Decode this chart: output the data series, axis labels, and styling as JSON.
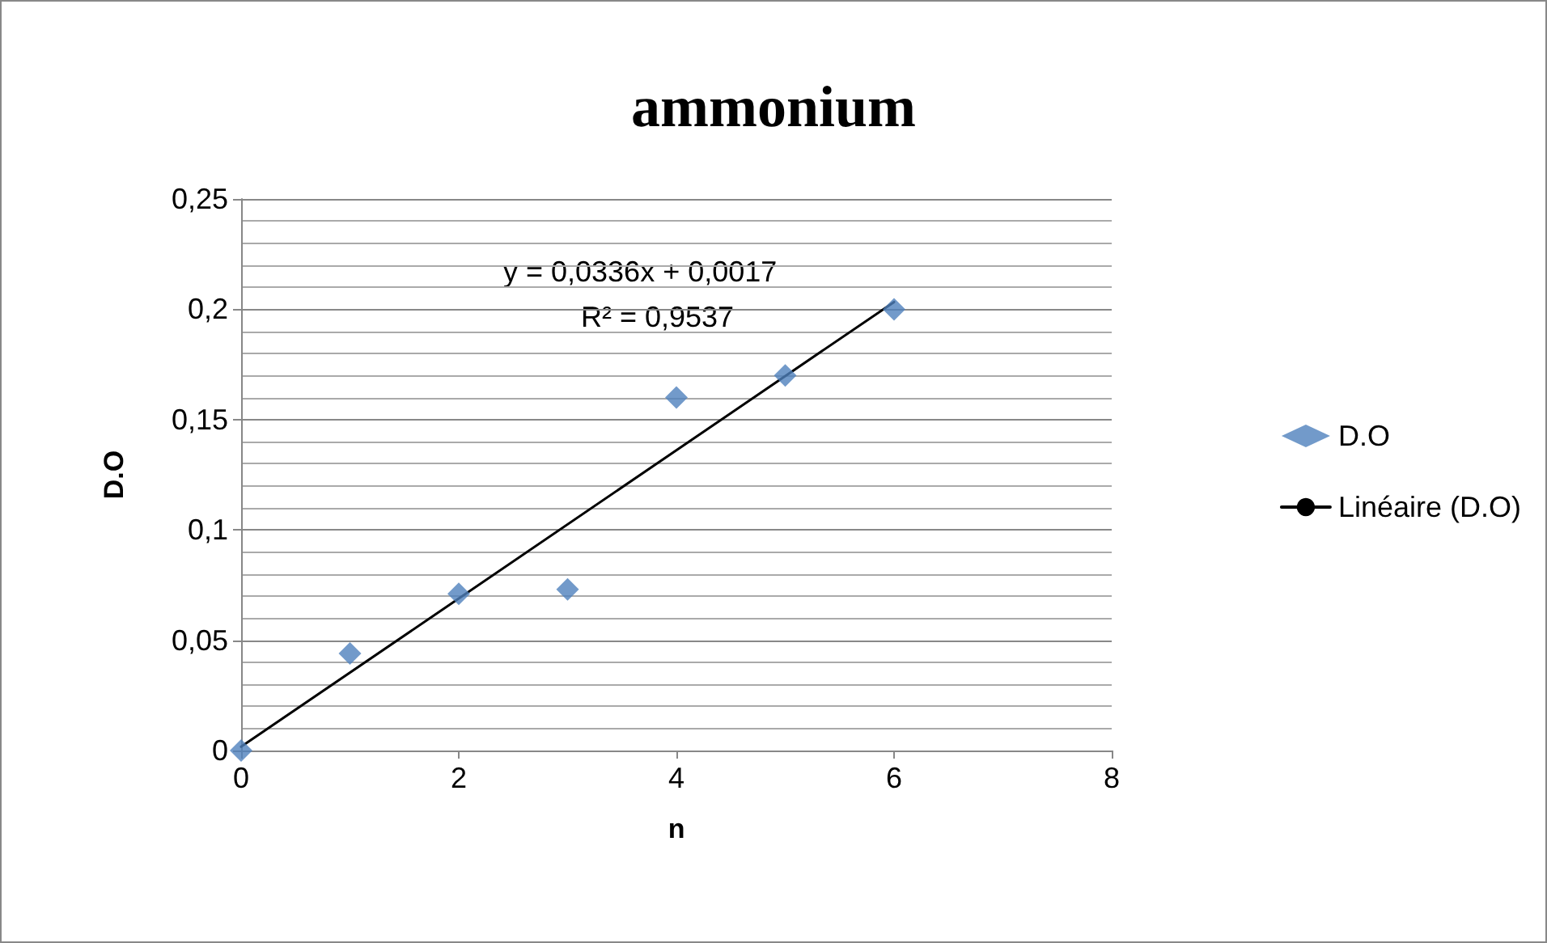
{
  "chart_data": {
    "type": "scatter",
    "title": "ammonium",
    "xlabel": "n",
    "ylabel": "D.O",
    "x": [
      0,
      1,
      2,
      3,
      4,
      5,
      6
    ],
    "series": [
      {
        "name": "D.O",
        "color": "#4f81bd",
        "marker": "diamond",
        "values": [
          0,
          0.044,
          0.071,
          0.073,
          0.16,
          0.17,
          0.2
        ]
      },
      {
        "name": "Linéaire (D.O)",
        "type": "line",
        "color": "#000000",
        "marker": "none",
        "line_style": "solid",
        "x": [
          0,
          6
        ],
        "values": [
          0.0017,
          0.2033
        ]
      }
    ],
    "xlim": [
      0,
      8
    ],
    "xticks": [
      0,
      2,
      4,
      6,
      8
    ],
    "ylim": [
      0,
      0.25
    ],
    "yticks": [
      0,
      {
        "value": 0.05,
        "label": "0,05"
      },
      {
        "value": 0.1,
        "label": "0,1"
      },
      {
        "value": 0.15,
        "label": "0,15"
      },
      {
        "value": 0.2,
        "label": "0,2"
      },
      {
        "value": 0.25,
        "label": "0,25"
      }
    ],
    "grid": "y",
    "legend": "right",
    "annotations": [
      "y = 0,0336x + 0,0017",
      "R² = 0,9537"
    ]
  }
}
